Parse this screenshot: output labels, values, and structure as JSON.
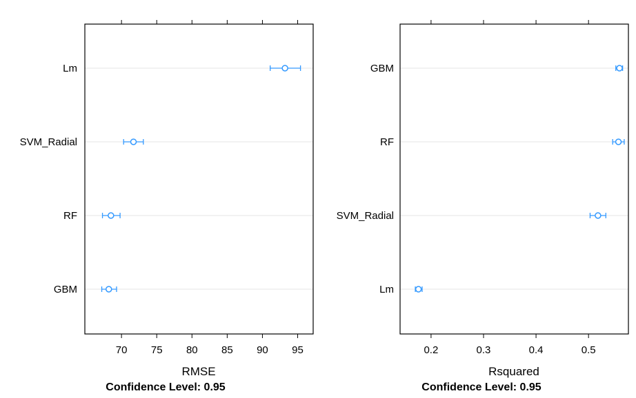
{
  "colors": {
    "marker": "#3399ff",
    "grid": "#e6e6e6",
    "frame": "#000000",
    "background": "#ffffff"
  },
  "chart_data": [
    {
      "type": "dotplot",
      "categories": [
        "Lm",
        "SVM_Radial",
        "RF",
        "GBM"
      ],
      "values": [
        93.2,
        71.7,
        68.5,
        68.2
      ],
      "lower": [
        91.1,
        70.3,
        67.3,
        67.2
      ],
      "upper": [
        95.4,
        73.1,
        69.8,
        69.3
      ],
      "xlabel": "RMSE",
      "confidence_label": "Confidence Level: 0.95",
      "xticks": [
        70,
        75,
        80,
        85,
        90,
        95
      ],
      "xlim": [
        64.8,
        97.2
      ],
      "grid": "horizontal"
    },
    {
      "type": "dotplot",
      "categories": [
        "GBM",
        "RF",
        "SVM_Radial",
        "Lm"
      ],
      "values": [
        0.559,
        0.557,
        0.518,
        0.176
      ],
      "lower": [
        0.552,
        0.546,
        0.503,
        0.17
      ],
      "upper": [
        0.565,
        0.568,
        0.533,
        0.183
      ],
      "xlabel": "Rsquared",
      "confidence_label": "Confidence Level: 0.95",
      "xticks": [
        0.2,
        0.3,
        0.4,
        0.5
      ],
      "xlim": [
        0.141,
        0.576
      ],
      "grid": "horizontal"
    }
  ]
}
